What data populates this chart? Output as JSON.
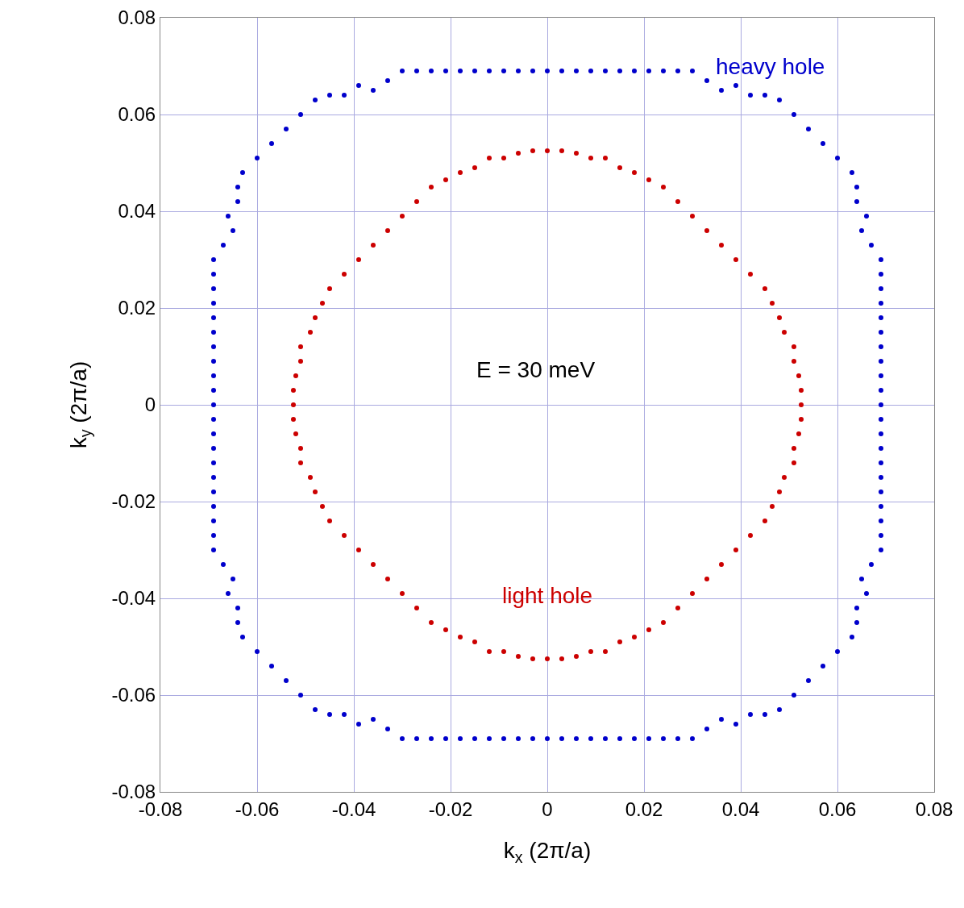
{
  "chart_data": {
    "type": "scatter",
    "xlabel": "k$_{x}$ (2π/a)",
    "ylabel": "k$_{y}$ (2π/a)",
    "xlim": [
      -0.08,
      0.08
    ],
    "ylim": [
      -0.08,
      0.08
    ],
    "xticks": [
      -0.08,
      -0.06,
      -0.04,
      -0.02,
      0,
      0.02,
      0.04,
      0.06,
      0.08
    ],
    "yticks": [
      -0.08,
      -0.06,
      -0.04,
      -0.02,
      0,
      0.02,
      0.04,
      0.06,
      0.08
    ],
    "grid": true,
    "legend": false,
    "marker": "circle",
    "annotations": [
      "E = 30 meV"
    ],
    "series": [
      {
        "name": "heavy hole",
        "color": "#0000cc",
        "x": [
          0,
          -0.003,
          -0.006,
          -0.009,
          -0.012,
          -0.015,
          -0.018,
          -0.021,
          -0.024,
          -0.027,
          -0.03,
          -0.033,
          -0.036,
          -0.039,
          -0.042,
          -0.045,
          -0.048,
          -0.051,
          -0.054,
          -0.057,
          -0.06,
          -0.063,
          -0.064,
          -0.064,
          -0.066,
          -0.065,
          -0.067,
          -0.069,
          -0.069,
          -0.069,
          -0.069,
          -0.069,
          -0.069,
          -0.069,
          -0.069,
          -0.069,
          -0.069,
          -0.069,
          -0.069,
          -0.069,
          -0.069,
          -0.069,
          -0.069,
          -0.069,
          -0.069,
          -0.069,
          -0.069,
          -0.069,
          -0.067,
          -0.065,
          -0.066,
          -0.064,
          -0.064,
          -0.063,
          -0.06,
          -0.057,
          -0.054,
          -0.051,
          -0.048,
          -0.045,
          -0.042,
          -0.039,
          -0.036,
          -0.033,
          -0.03,
          -0.027,
          -0.024,
          -0.021,
          -0.018,
          -0.015,
          -0.012,
          -0.009,
          -0.006,
          -0.003,
          0,
          0.003,
          0.006,
          0.009,
          0.012,
          0.015,
          0.018,
          0.021,
          0.024,
          0.027,
          0.03,
          0.033,
          0.036,
          0.039,
          0.042,
          0.045,
          0.048,
          0.051,
          0.054,
          0.057,
          0.06,
          0.063,
          0.064,
          0.064,
          0.066,
          0.065,
          0.067,
          0.069,
          0.069,
          0.069,
          0.069,
          0.069,
          0.069,
          0.069,
          0.069,
          0.069,
          0.069,
          0.069,
          0.069,
          0.069,
          0.069,
          0.069,
          0.069,
          0.069,
          0.069,
          0.069,
          0.069,
          0.069,
          0.067,
          0.065,
          0.066,
          0.064,
          0.064,
          0.063,
          0.06,
          0.057,
          0.054,
          0.051,
          0.048,
          0.045,
          0.042,
          0.039,
          0.036,
          0.033,
          0.03,
          0.027,
          0.024,
          0.021,
          0.018,
          0.015,
          0.012,
          0.009,
          0.006,
          0.003
        ],
        "values": [
          0.069,
          0.069,
          0.069,
          0.069,
          0.069,
          0.069,
          0.069,
          0.069,
          0.069,
          0.069,
          0.069,
          0.067,
          0.065,
          0.066,
          0.064,
          0.064,
          0.063,
          0.06,
          0.057,
          0.054,
          0.051,
          0.048,
          0.045,
          0.042,
          0.039,
          0.036,
          0.033,
          0.03,
          0.027,
          0.024,
          0.021,
          0.018,
          0.015,
          0.012,
          0.009,
          0.006,
          0.003,
          0,
          -0.003,
          -0.006,
          -0.009,
          -0.012,
          -0.015,
          -0.018,
          -0.021,
          -0.024,
          -0.027,
          -0.03,
          -0.033,
          -0.036,
          -0.039,
          -0.042,
          -0.045,
          -0.048,
          -0.051,
          -0.054,
          -0.057,
          -0.06,
          -0.063,
          -0.064,
          -0.064,
          -0.066,
          -0.065,
          -0.067,
          -0.069,
          -0.069,
          -0.069,
          -0.069,
          -0.069,
          -0.069,
          -0.069,
          -0.069,
          -0.069,
          -0.069,
          -0.069,
          -0.069,
          -0.069,
          -0.069,
          -0.069,
          -0.069,
          -0.069,
          -0.069,
          -0.069,
          -0.069,
          -0.069,
          -0.067,
          -0.065,
          -0.066,
          -0.064,
          -0.064,
          -0.063,
          -0.06,
          -0.057,
          -0.054,
          -0.051,
          -0.048,
          -0.045,
          -0.042,
          -0.039,
          -0.036,
          -0.033,
          -0.03,
          -0.027,
          -0.024,
          -0.021,
          -0.018,
          -0.015,
          -0.012,
          -0.009,
          -0.006,
          -0.003,
          0,
          0.003,
          0.006,
          0.009,
          0.012,
          0.015,
          0.018,
          0.021,
          0.024,
          0.027,
          0.03,
          0.033,
          0.036,
          0.039,
          0.042,
          0.045,
          0.048,
          0.051,
          0.054,
          0.057,
          0.06,
          0.063,
          0.064,
          0.064,
          0.066,
          0.065,
          0.067,
          0.069,
          0.069,
          0.069,
          0.069,
          0.069,
          0.069,
          0.069,
          0.069,
          0.069,
          0.069
        ]
      },
      {
        "name": "light hole",
        "color": "#cc0000",
        "x": [
          0,
          -0.003,
          -0.006,
          -0.009,
          -0.012,
          -0.015,
          -0.018,
          -0.021,
          -0.024,
          -0.027,
          -0.03,
          -0.033,
          -0.036,
          -0.039,
          -0.042,
          -0.045,
          -0.0465,
          -0.048,
          -0.049,
          -0.051,
          -0.051,
          -0.052,
          -0.0525,
          -0.0525,
          -0.0525,
          -0.052,
          -0.051,
          -0.051,
          -0.049,
          -0.048,
          -0.0465,
          -0.045,
          -0.042,
          -0.039,
          -0.036,
          -0.033,
          -0.03,
          -0.027,
          -0.024,
          -0.021,
          -0.018,
          -0.015,
          -0.012,
          -0.009,
          -0.006,
          -0.003,
          0,
          0.003,
          0.006,
          0.009,
          0.012,
          0.015,
          0.018,
          0.021,
          0.024,
          0.027,
          0.03,
          0.033,
          0.036,
          0.039,
          0.042,
          0.045,
          0.0465,
          0.048,
          0.049,
          0.051,
          0.051,
          0.052,
          0.0525,
          0.0525,
          0.0525,
          0.052,
          0.051,
          0.051,
          0.049,
          0.048,
          0.0465,
          0.045,
          0.042,
          0.039,
          0.036,
          0.033,
          0.03,
          0.027,
          0.024,
          0.021,
          0.018,
          0.015,
          0.012,
          0.009,
          0.006,
          0.003
        ],
        "values": [
          0.0525,
          0.0525,
          0.052,
          0.051,
          0.051,
          0.049,
          0.048,
          0.0465,
          0.045,
          0.042,
          0.039,
          0.036,
          0.033,
          0.03,
          0.027,
          0.024,
          0.021,
          0.018,
          0.015,
          0.012,
          0.009,
          0.006,
          0.003,
          0,
          -0.003,
          -0.006,
          -0.009,
          -0.012,
          -0.015,
          -0.018,
          -0.021,
          -0.024,
          -0.027,
          -0.03,
          -0.033,
          -0.036,
          -0.039,
          -0.042,
          -0.045,
          -0.0465,
          -0.048,
          -0.049,
          -0.051,
          -0.051,
          -0.052,
          -0.0525,
          -0.0525,
          -0.0525,
          -0.052,
          -0.051,
          -0.051,
          -0.049,
          -0.048,
          -0.0465,
          -0.045,
          -0.042,
          -0.039,
          -0.036,
          -0.033,
          -0.03,
          -0.027,
          -0.024,
          -0.021,
          -0.018,
          -0.015,
          -0.012,
          -0.009,
          -0.006,
          -0.003,
          0,
          0.003,
          0.006,
          0.009,
          0.012,
          0.015,
          0.018,
          0.021,
          0.024,
          0.027,
          0.03,
          0.033,
          0.036,
          0.039,
          0.042,
          0.045,
          0.0465,
          0.048,
          0.049,
          0.051,
          0.051,
          0.052,
          0.0525
        ]
      }
    ]
  }
}
